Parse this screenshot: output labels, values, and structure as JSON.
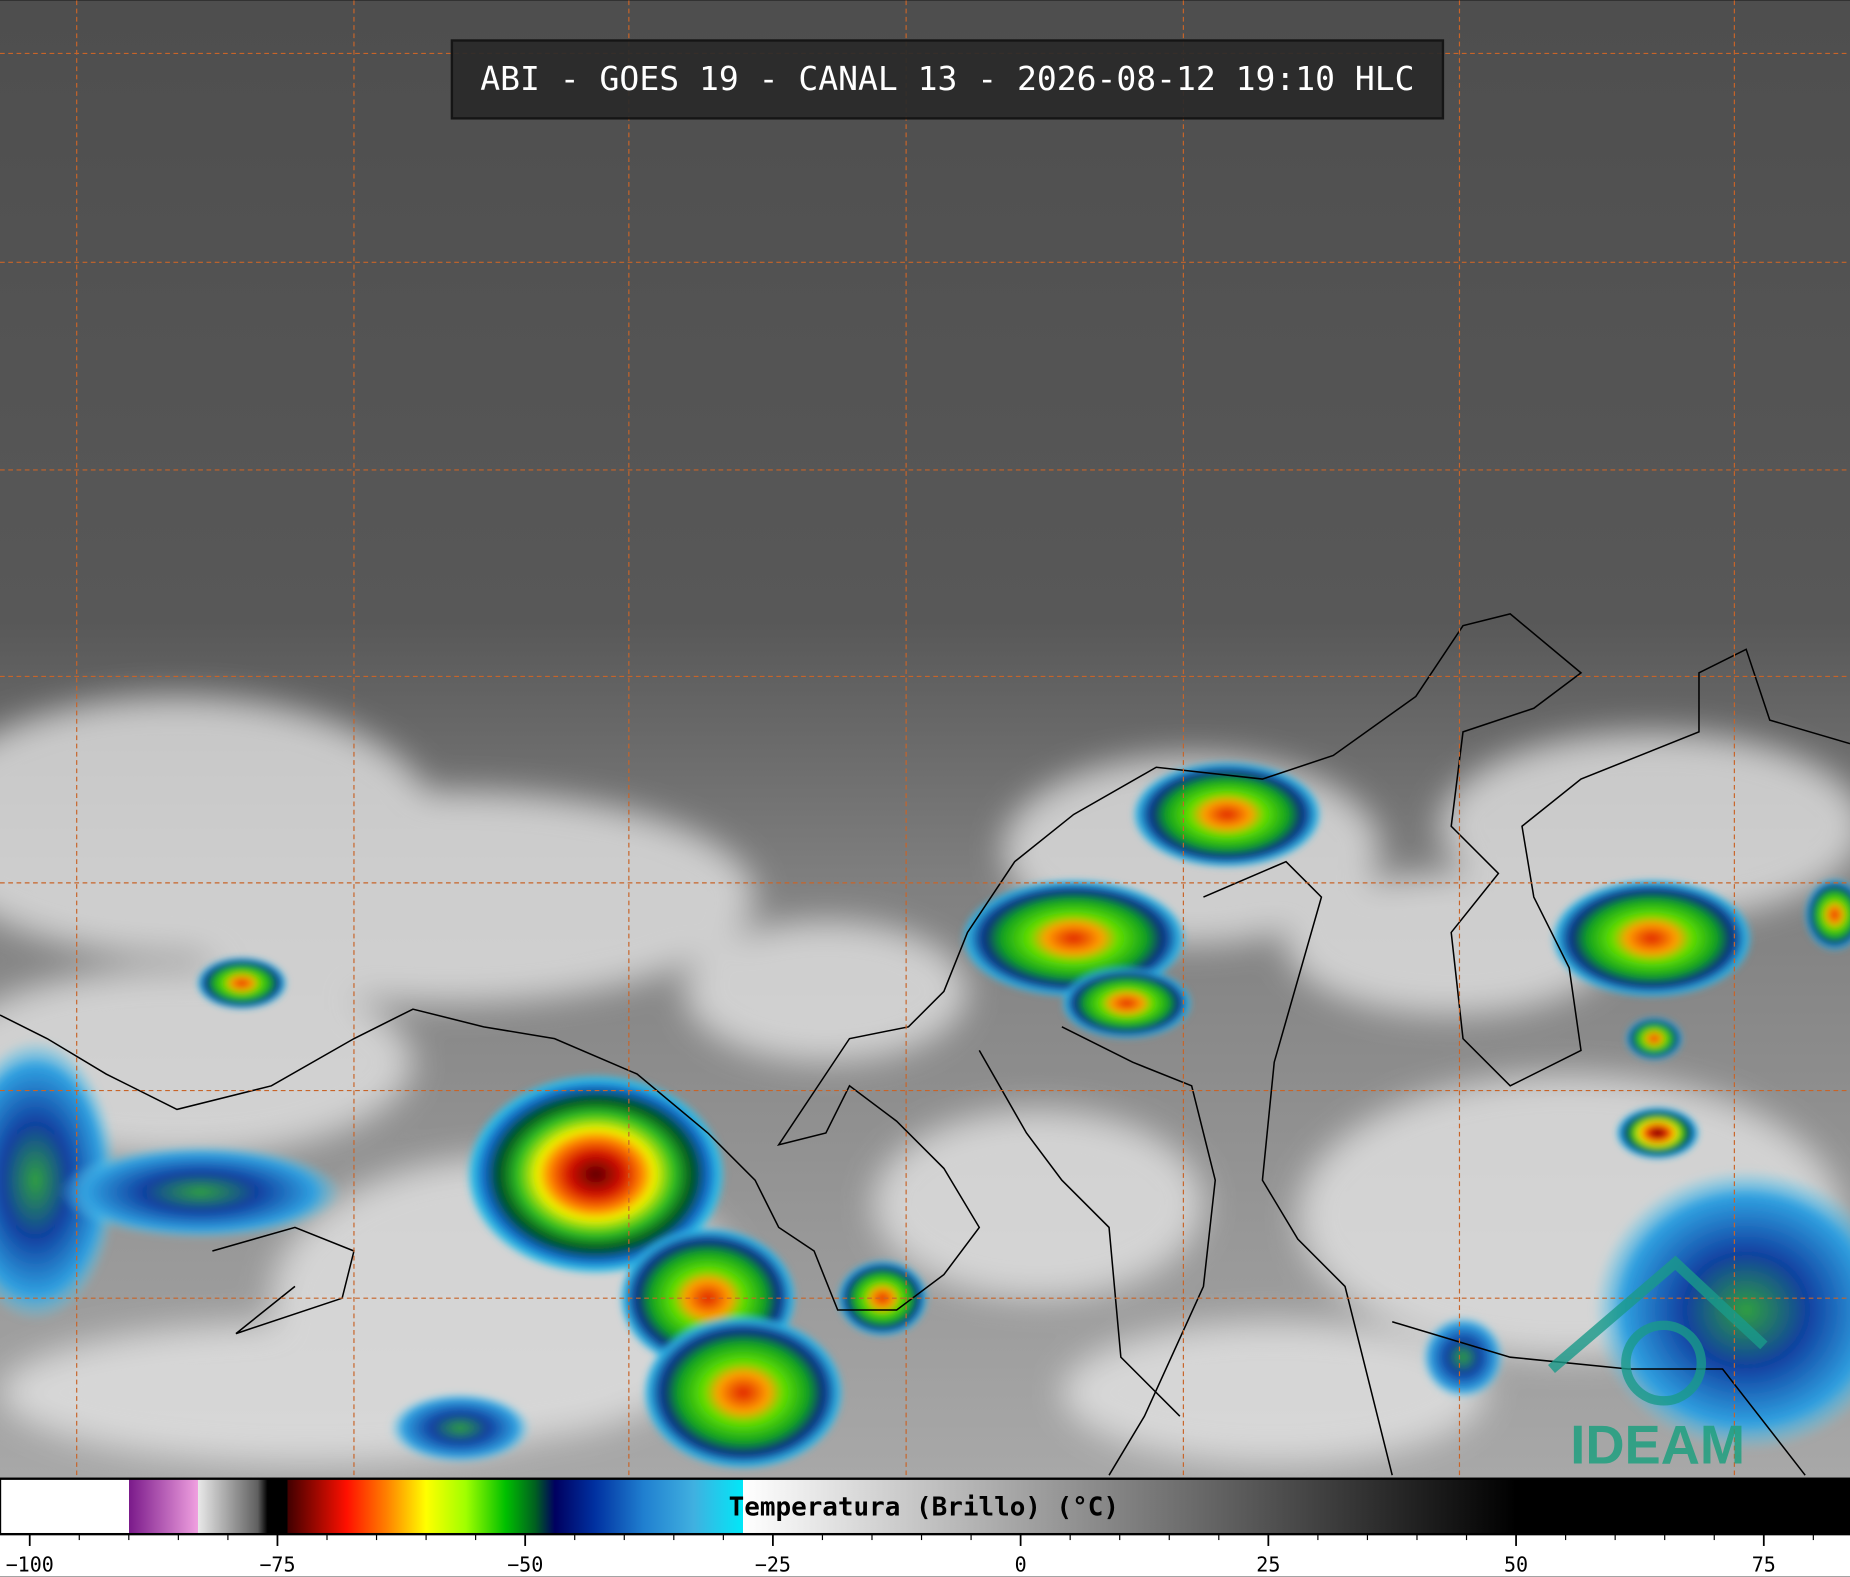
{
  "header": {
    "title": "ABI - GOES 19 - CANAL 13 - 2026-08-12 19:10 HLC"
  },
  "colorbar": {
    "label": "Temperatura (Brillo) (°C)",
    "lim": [
      -103,
      83.7
    ],
    "ticks": [
      {
        "value": -100,
        "label": "−100"
      },
      {
        "value": -75,
        "label": "−75"
      },
      {
        "value": -50,
        "label": "−50"
      },
      {
        "value": -25,
        "label": "−25"
      },
      0,
      25,
      50,
      75
    ],
    "colors": [
      [
        -103,
        "#ffffff"
      ],
      [
        -90,
        "#ffffff"
      ],
      [
        -90,
        "#7a1a8a"
      ],
      [
        -83,
        "#f0a0e0"
      ],
      [
        -83,
        "#e8e8e8"
      ],
      [
        -77,
        "#606060"
      ],
      [
        -76,
        "#000000"
      ],
      [
        -74,
        "#000000"
      ],
      [
        -74,
        "#400000"
      ],
      [
        -68,
        "#ff1000"
      ],
      [
        -64,
        "#ff8000"
      ],
      [
        -60,
        "#ffff00"
      ],
      [
        -56,
        "#a0ff00"
      ],
      [
        -52,
        "#00c000"
      ],
      [
        -49,
        "#006020"
      ],
      [
        -47,
        "#000060"
      ],
      [
        -43,
        "#0030a0"
      ],
      [
        -38,
        "#2080d0"
      ],
      [
        -33,
        "#40b0e0"
      ],
      [
        -28,
        "#00e8f8"
      ],
      [
        -28,
        "#ffffff"
      ],
      [
        50,
        "#000000"
      ],
      [
        83.7,
        "#000000"
      ]
    ]
  },
  "logo": {
    "text": "IDEAM"
  }
}
